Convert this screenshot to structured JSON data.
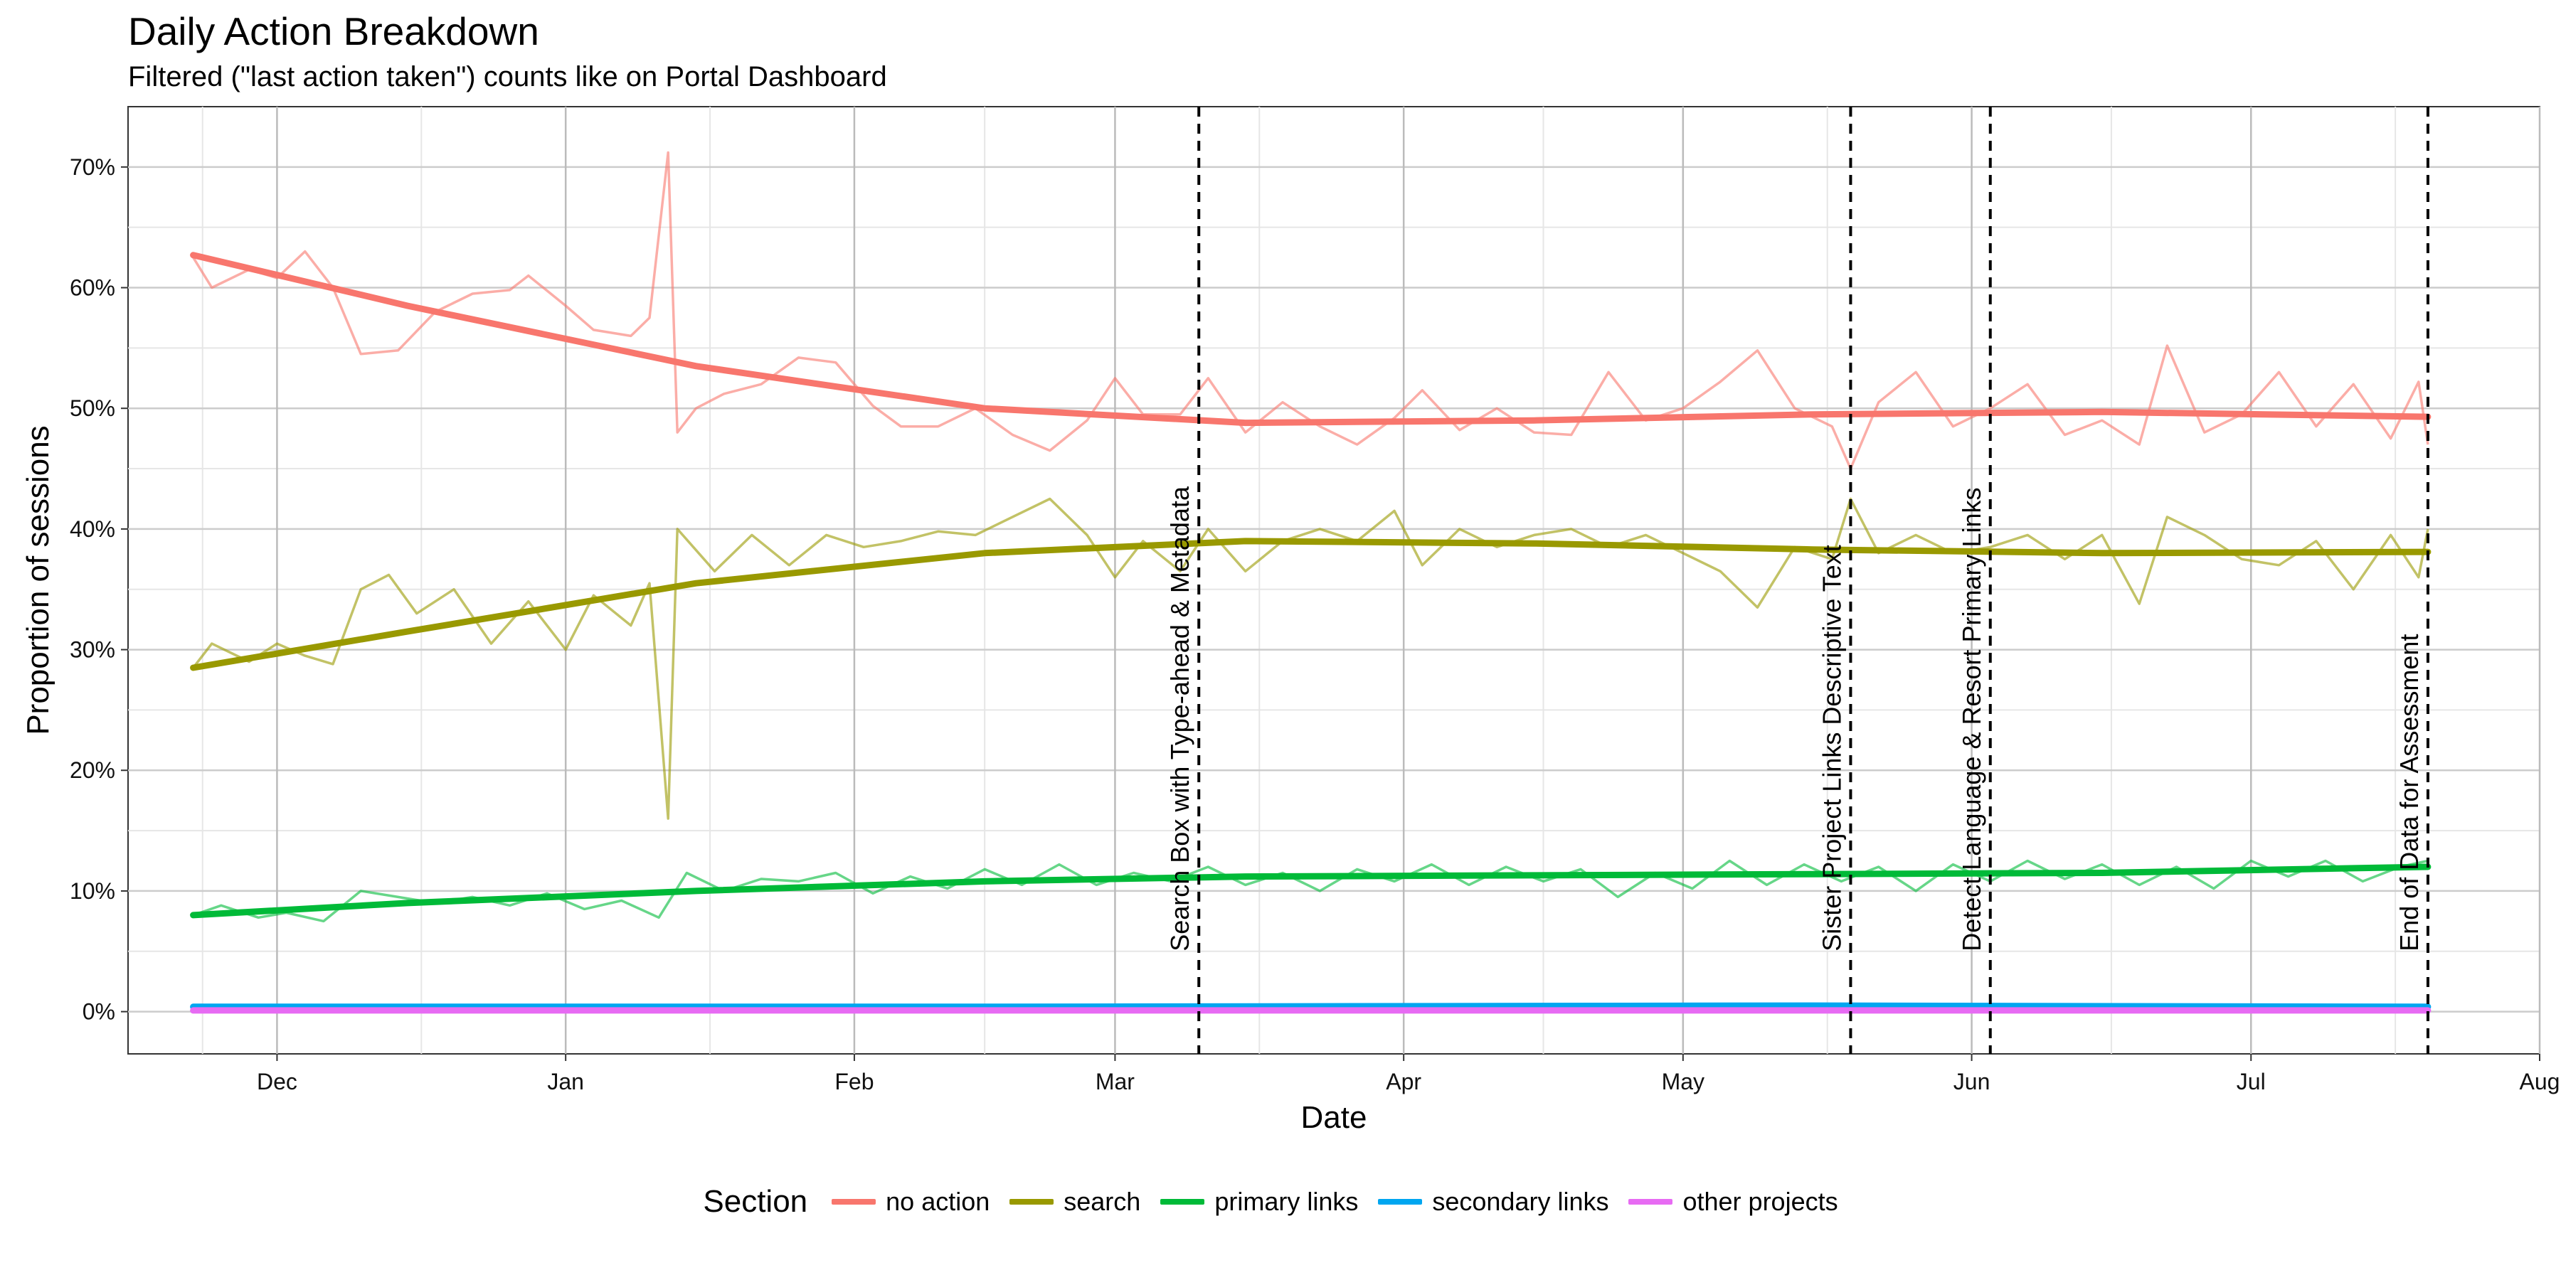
{
  "chart_data": {
    "type": "line",
    "title": "Daily Action Breakdown",
    "subtitle": "Filtered (\"last action taken\") counts like on Portal Dashboard",
    "xlabel": "Date",
    "ylabel": "Proportion of sessions",
    "x_range": [
      "2016-11-15",
      "2017-08-01"
    ],
    "ylim": [
      -0.035,
      0.75
    ],
    "x_ticks": [
      {
        "date": "2016-12-01",
        "label": "Dec"
      },
      {
        "date": "2017-01-01",
        "label": "Jan"
      },
      {
        "date": "2017-02-01",
        "label": "Feb"
      },
      {
        "date": "2017-03-01",
        "label": "Mar"
      },
      {
        "date": "2017-04-01",
        "label": "Apr"
      },
      {
        "date": "2017-05-01",
        "label": "May"
      },
      {
        "date": "2017-06-01",
        "label": "Jun"
      },
      {
        "date": "2017-07-01",
        "label": "Jul"
      },
      {
        "date": "2017-08-01",
        "label": "Aug"
      }
    ],
    "y_ticks": [
      {
        "value": 0.0,
        "label": "0%"
      },
      {
        "value": 0.1,
        "label": "10%"
      },
      {
        "value": 0.2,
        "label": "20%"
      },
      {
        "value": 0.3,
        "label": "30%"
      },
      {
        "value": 0.4,
        "label": "40%"
      },
      {
        "value": 0.5,
        "label": "50%"
      },
      {
        "value": 0.6,
        "label": "60%"
      },
      {
        "value": 0.7,
        "label": "70%"
      }
    ],
    "grid": true,
    "legend_title": "Section",
    "legend_position": "bottom",
    "annotations": [
      {
        "date": "2017-03-10",
        "label": "Search Box with Type-ahead & Metadata"
      },
      {
        "date": "2017-05-19",
        "label": "Sister Project Links Descriptive Text"
      },
      {
        "date": "2017-06-03",
        "label": "Detect Language & Resort Primary Links"
      },
      {
        "date": "2017-07-20",
        "label": "End of Data for Assessment"
      }
    ],
    "series": [
      {
        "name": "no action",
        "color": "#F8766D",
        "raw_points": [
          [
            "2016-11-22",
            0.625
          ],
          [
            "2016-11-24",
            0.6
          ],
          [
            "2016-11-28",
            0.615
          ],
          [
            "2016-12-01",
            0.608
          ],
          [
            "2016-12-04",
            0.63
          ],
          [
            "2016-12-07",
            0.6
          ],
          [
            "2016-12-10",
            0.545
          ],
          [
            "2016-12-14",
            0.548
          ],
          [
            "2016-12-18",
            0.58
          ],
          [
            "2016-12-22",
            0.595
          ],
          [
            "2016-12-26",
            0.598
          ],
          [
            "2016-12-28",
            0.61
          ],
          [
            "2017-01-01",
            0.585
          ],
          [
            "2017-01-04",
            0.565
          ],
          [
            "2017-01-08",
            0.56
          ],
          [
            "2017-01-10",
            0.575
          ],
          [
            "2017-01-12",
            0.712
          ],
          [
            "2017-01-13",
            0.48
          ],
          [
            "2017-01-15",
            0.5
          ],
          [
            "2017-01-18",
            0.512
          ],
          [
            "2017-01-22",
            0.52
          ],
          [
            "2017-01-26",
            0.542
          ],
          [
            "2017-01-30",
            0.538
          ],
          [
            "2017-02-03",
            0.502
          ],
          [
            "2017-02-06",
            0.485
          ],
          [
            "2017-02-10",
            0.485
          ],
          [
            "2017-02-14",
            0.5
          ],
          [
            "2017-02-18",
            0.478
          ],
          [
            "2017-02-22",
            0.465
          ],
          [
            "2017-02-26",
            0.49
          ],
          [
            "2017-03-01",
            0.525
          ],
          [
            "2017-03-04",
            0.495
          ],
          [
            "2017-03-08",
            0.495
          ],
          [
            "2017-03-11",
            0.525
          ],
          [
            "2017-03-15",
            0.48
          ],
          [
            "2017-03-19",
            0.505
          ],
          [
            "2017-03-23",
            0.485
          ],
          [
            "2017-03-27",
            0.47
          ],
          [
            "2017-03-31",
            0.492
          ],
          [
            "2017-04-03",
            0.515
          ],
          [
            "2017-04-07",
            0.482
          ],
          [
            "2017-04-11",
            0.5
          ],
          [
            "2017-04-15",
            0.48
          ],
          [
            "2017-04-19",
            0.478
          ],
          [
            "2017-04-23",
            0.53
          ],
          [
            "2017-04-27",
            0.49
          ],
          [
            "2017-05-01",
            0.5
          ],
          [
            "2017-05-05",
            0.522
          ],
          [
            "2017-05-09",
            0.548
          ],
          [
            "2017-05-13",
            0.5
          ],
          [
            "2017-05-17",
            0.485
          ],
          [
            "2017-05-19",
            0.45
          ],
          [
            "2017-05-22",
            0.505
          ],
          [
            "2017-05-26",
            0.53
          ],
          [
            "2017-05-30",
            0.485
          ],
          [
            "2017-06-03",
            0.5
          ],
          [
            "2017-06-07",
            0.52
          ],
          [
            "2017-06-11",
            0.478
          ],
          [
            "2017-06-15",
            0.49
          ],
          [
            "2017-06-19",
            0.47
          ],
          [
            "2017-06-22",
            0.552
          ],
          [
            "2017-06-26",
            0.48
          ],
          [
            "2017-06-30",
            0.495
          ],
          [
            "2017-07-04",
            0.53
          ],
          [
            "2017-07-08",
            0.485
          ],
          [
            "2017-07-12",
            0.52
          ],
          [
            "2017-07-16",
            0.475
          ],
          [
            "2017-07-19",
            0.522
          ],
          [
            "2017-07-20",
            0.47
          ]
        ],
        "trend_points": [
          [
            "2016-11-22",
            0.627
          ],
          [
            "2016-12-15",
            0.585
          ],
          [
            "2017-01-15",
            0.535
          ],
          [
            "2017-02-15",
            0.5
          ],
          [
            "2017-03-15",
            0.488
          ],
          [
            "2017-04-15",
            0.49
          ],
          [
            "2017-05-15",
            0.495
          ],
          [
            "2017-06-15",
            0.497
          ],
          [
            "2017-07-20",
            0.493
          ]
        ]
      },
      {
        "name": "search",
        "color": "#999900",
        "raw_points": [
          [
            "2016-11-22",
            0.285
          ],
          [
            "2016-11-24",
            0.305
          ],
          [
            "2016-11-28",
            0.29
          ],
          [
            "2016-12-01",
            0.305
          ],
          [
            "2016-12-04",
            0.295
          ],
          [
            "2016-12-07",
            0.288
          ],
          [
            "2016-12-10",
            0.35
          ],
          [
            "2016-12-13",
            0.362
          ],
          [
            "2016-12-16",
            0.33
          ],
          [
            "2016-12-20",
            0.35
          ],
          [
            "2016-12-24",
            0.305
          ],
          [
            "2016-12-28",
            0.34
          ],
          [
            "2017-01-01",
            0.3
          ],
          [
            "2017-01-04",
            0.345
          ],
          [
            "2017-01-08",
            0.32
          ],
          [
            "2017-01-10",
            0.355
          ],
          [
            "2017-01-12",
            0.16
          ],
          [
            "2017-01-13",
            0.4
          ],
          [
            "2017-01-17",
            0.365
          ],
          [
            "2017-01-21",
            0.395
          ],
          [
            "2017-01-25",
            0.37
          ],
          [
            "2017-01-29",
            0.395
          ],
          [
            "2017-02-02",
            0.385
          ],
          [
            "2017-02-06",
            0.39
          ],
          [
            "2017-02-10",
            0.398
          ],
          [
            "2017-02-14",
            0.395
          ],
          [
            "2017-02-18",
            0.41
          ],
          [
            "2017-02-22",
            0.425
          ],
          [
            "2017-02-26",
            0.395
          ],
          [
            "2017-03-01",
            0.36
          ],
          [
            "2017-03-04",
            0.39
          ],
          [
            "2017-03-08",
            0.365
          ],
          [
            "2017-03-11",
            0.4
          ],
          [
            "2017-03-15",
            0.365
          ],
          [
            "2017-03-19",
            0.39
          ],
          [
            "2017-03-23",
            0.4
          ],
          [
            "2017-03-27",
            0.39
          ],
          [
            "2017-03-31",
            0.415
          ],
          [
            "2017-04-03",
            0.37
          ],
          [
            "2017-04-07",
            0.4
          ],
          [
            "2017-04-11",
            0.385
          ],
          [
            "2017-04-15",
            0.395
          ],
          [
            "2017-04-19",
            0.4
          ],
          [
            "2017-04-23",
            0.385
          ],
          [
            "2017-04-27",
            0.395
          ],
          [
            "2017-05-01",
            0.38
          ],
          [
            "2017-05-05",
            0.365
          ],
          [
            "2017-05-09",
            0.335
          ],
          [
            "2017-05-13",
            0.385
          ],
          [
            "2017-05-17",
            0.375
          ],
          [
            "2017-05-19",
            0.425
          ],
          [
            "2017-05-22",
            0.38
          ],
          [
            "2017-05-26",
            0.395
          ],
          [
            "2017-05-30",
            0.38
          ],
          [
            "2017-06-03",
            0.385
          ],
          [
            "2017-06-07",
            0.395
          ],
          [
            "2017-06-11",
            0.375
          ],
          [
            "2017-06-15",
            0.395
          ],
          [
            "2017-06-19",
            0.338
          ],
          [
            "2017-06-22",
            0.41
          ],
          [
            "2017-06-26",
            0.395
          ],
          [
            "2017-06-30",
            0.375
          ],
          [
            "2017-07-04",
            0.37
          ],
          [
            "2017-07-08",
            0.39
          ],
          [
            "2017-07-12",
            0.35
          ],
          [
            "2017-07-16",
            0.395
          ],
          [
            "2017-07-19",
            0.36
          ],
          [
            "2017-07-20",
            0.4
          ]
        ],
        "trend_points": [
          [
            "2016-11-22",
            0.285
          ],
          [
            "2016-12-15",
            0.315
          ],
          [
            "2017-01-15",
            0.355
          ],
          [
            "2017-02-15",
            0.38
          ],
          [
            "2017-03-15",
            0.39
          ],
          [
            "2017-04-15",
            0.388
          ],
          [
            "2017-05-15",
            0.383
          ],
          [
            "2017-06-15",
            0.38
          ],
          [
            "2017-07-20",
            0.381
          ]
        ]
      },
      {
        "name": "primary links",
        "color": "#00BA38",
        "raw_points": [
          [
            "2016-11-22",
            0.08
          ],
          [
            "2016-11-25",
            0.088
          ],
          [
            "2016-11-29",
            0.078
          ],
          [
            "2016-12-02",
            0.082
          ],
          [
            "2016-12-06",
            0.075
          ],
          [
            "2016-12-10",
            0.1
          ],
          [
            "2016-12-14",
            0.095
          ],
          [
            "2016-12-18",
            0.09
          ],
          [
            "2016-12-22",
            0.095
          ],
          [
            "2016-12-26",
            0.088
          ],
          [
            "2016-12-30",
            0.098
          ],
          [
            "2017-01-03",
            0.085
          ],
          [
            "2017-01-07",
            0.092
          ],
          [
            "2017-01-11",
            0.078
          ],
          [
            "2017-01-14",
            0.115
          ],
          [
            "2017-01-18",
            0.1
          ],
          [
            "2017-01-22",
            0.11
          ],
          [
            "2017-01-26",
            0.108
          ],
          [
            "2017-01-30",
            0.115
          ],
          [
            "2017-02-03",
            0.098
          ],
          [
            "2017-02-07",
            0.112
          ],
          [
            "2017-02-11",
            0.102
          ],
          [
            "2017-02-15",
            0.118
          ],
          [
            "2017-02-19",
            0.105
          ],
          [
            "2017-02-23",
            0.122
          ],
          [
            "2017-02-27",
            0.105
          ],
          [
            "2017-03-03",
            0.115
          ],
          [
            "2017-03-07",
            0.108
          ],
          [
            "2017-03-11",
            0.12
          ],
          [
            "2017-03-15",
            0.105
          ],
          [
            "2017-03-19",
            0.115
          ],
          [
            "2017-03-23",
            0.1
          ],
          [
            "2017-03-27",
            0.118
          ],
          [
            "2017-03-31",
            0.108
          ],
          [
            "2017-04-04",
            0.122
          ],
          [
            "2017-04-08",
            0.105
          ],
          [
            "2017-04-12",
            0.12
          ],
          [
            "2017-04-16",
            0.108
          ],
          [
            "2017-04-20",
            0.118
          ],
          [
            "2017-04-24",
            0.095
          ],
          [
            "2017-04-28",
            0.115
          ],
          [
            "2017-05-02",
            0.102
          ],
          [
            "2017-05-06",
            0.125
          ],
          [
            "2017-05-10",
            0.105
          ],
          [
            "2017-05-14",
            0.122
          ],
          [
            "2017-05-18",
            0.108
          ],
          [
            "2017-05-22",
            0.12
          ],
          [
            "2017-05-26",
            0.1
          ],
          [
            "2017-05-30",
            0.122
          ],
          [
            "2017-06-03",
            0.108
          ],
          [
            "2017-06-07",
            0.125
          ],
          [
            "2017-06-11",
            0.11
          ],
          [
            "2017-06-15",
            0.122
          ],
          [
            "2017-06-19",
            0.105
          ],
          [
            "2017-06-23",
            0.12
          ],
          [
            "2017-06-27",
            0.102
          ],
          [
            "2017-07-01",
            0.125
          ],
          [
            "2017-07-05",
            0.112
          ],
          [
            "2017-07-09",
            0.125
          ],
          [
            "2017-07-13",
            0.108
          ],
          [
            "2017-07-17",
            0.12
          ],
          [
            "2017-07-20",
            0.125
          ]
        ],
        "trend_points": [
          [
            "2016-11-22",
            0.08
          ],
          [
            "2016-12-15",
            0.09
          ],
          [
            "2017-01-15",
            0.1
          ],
          [
            "2017-02-15",
            0.108
          ],
          [
            "2017-03-15",
            0.112
          ],
          [
            "2017-04-15",
            0.113
          ],
          [
            "2017-05-15",
            0.114
          ],
          [
            "2017-06-15",
            0.115
          ],
          [
            "2017-07-20",
            0.12
          ]
        ]
      },
      {
        "name": "secondary links",
        "color": "#00A6F0",
        "raw_points": [
          [
            "2016-11-22",
            0.004
          ],
          [
            "2017-03-15",
            0.005
          ],
          [
            "2017-07-20",
            0.004
          ]
        ],
        "trend_points": [
          [
            "2016-11-22",
            0.004
          ],
          [
            "2017-02-15",
            0.004
          ],
          [
            "2017-05-15",
            0.005
          ],
          [
            "2017-07-20",
            0.004
          ]
        ]
      },
      {
        "name": "other projects",
        "color": "#E76BF3",
        "raw_points": [
          [
            "2016-11-22",
            0.001
          ],
          [
            "2017-03-15",
            0.001
          ],
          [
            "2017-07-20",
            0.001
          ]
        ],
        "trend_points": [
          [
            "2016-11-22",
            0.001
          ],
          [
            "2017-07-20",
            0.001
          ]
        ]
      }
    ]
  }
}
